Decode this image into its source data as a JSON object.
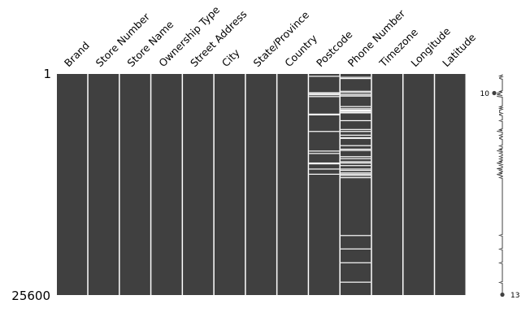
{
  "chart_data": {
    "type": "nullity-matrix",
    "rows_total": 25600,
    "row_ticks": [
      {
        "row": 1,
        "label": "1"
      },
      {
        "row": 25600,
        "label": "25600"
      }
    ],
    "columns": [
      {
        "name": "Brand",
        "missing_rows": []
      },
      {
        "name": "Store Number",
        "missing_rows": []
      },
      {
        "name": "Store Name",
        "missing_rows": []
      },
      {
        "name": "Ownership Type",
        "missing_rows": []
      },
      {
        "name": "Street Address",
        "missing_rows": []
      },
      {
        "name": "City",
        "missing_rows": []
      },
      {
        "name": "State/Province",
        "missing_rows": []
      },
      {
        "name": "Country",
        "missing_rows": []
      },
      {
        "name": "Postcode",
        "missing_rows": [
          260,
          2170,
          2260,
          2400,
          2610,
          4640,
          4730,
          6650,
          8920,
          9200,
          10300,
          10400,
          11000,
          11600
        ]
      },
      {
        "name": "Phone Number",
        "missing_rows": [
          380,
          520,
          2000,
          2170,
          2400,
          2550,
          3770,
          4020,
          4170,
          4260,
          4400,
          4500,
          5400,
          6420,
          6650,
          7080,
          7370,
          7450,
          8290,
          8700,
          8850,
          9570,
          9800,
          10150,
          10300,
          10600,
          11000,
          11160,
          11450,
          11600,
          11760,
          12000,
          18700,
          20250,
          21850,
          24100
        ]
      },
      {
        "name": "Timezone",
        "missing_rows": []
      },
      {
        "name": "Longitude",
        "missing_rows": []
      },
      {
        "name": "Latitude",
        "missing_rows": []
      }
    ],
    "sparkline": {
      "min": {
        "value": 10,
        "label": "10"
      },
      "max": {
        "value": 13,
        "label": "13"
      }
    },
    "colors": {
      "present": "#404040",
      "missing": "#ffffff",
      "text": "#000000"
    }
  }
}
